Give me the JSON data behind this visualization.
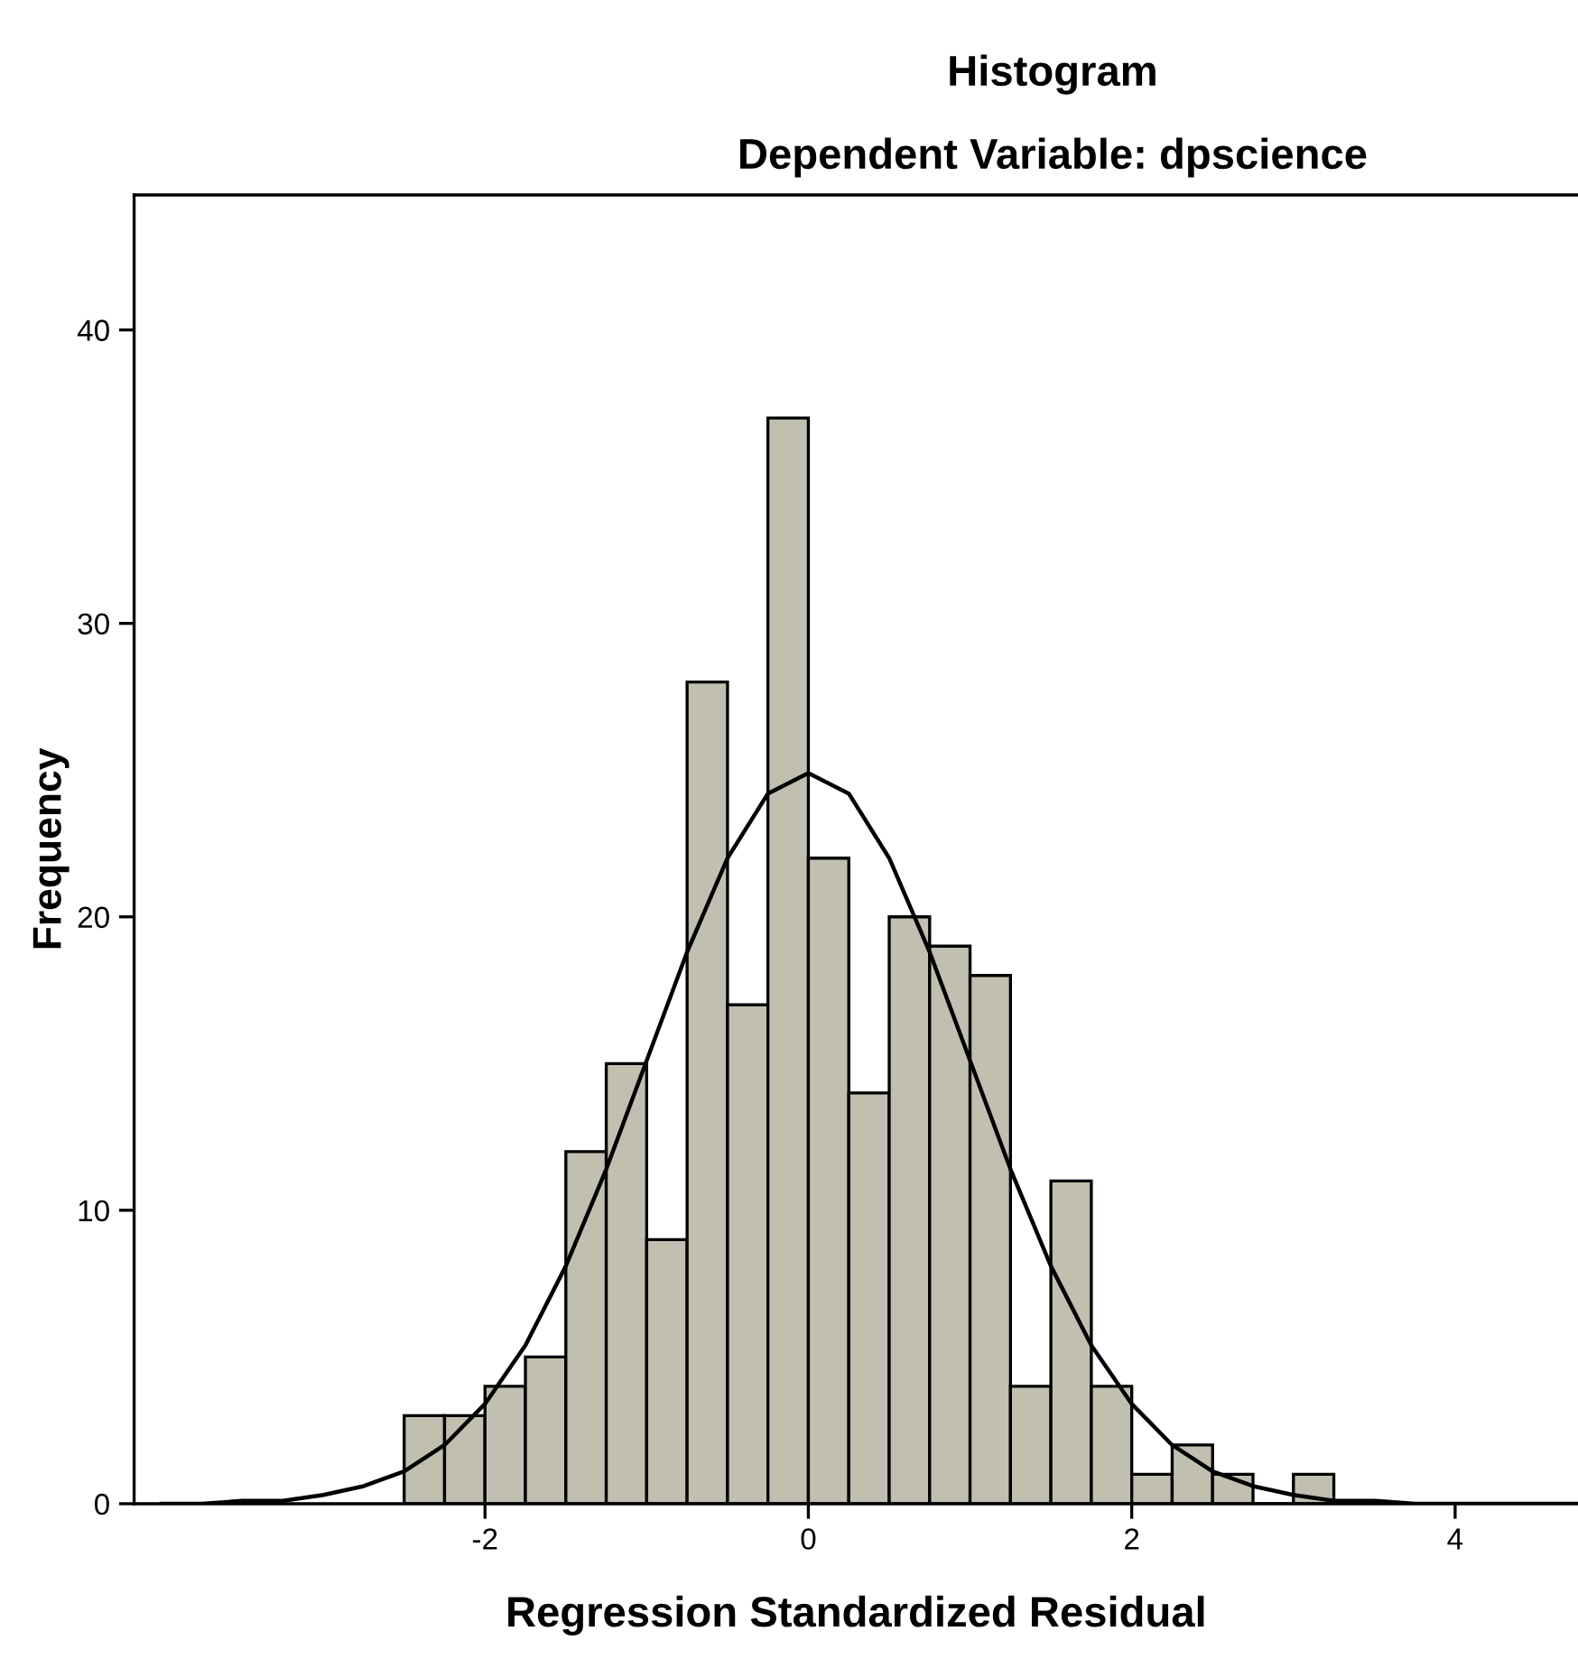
{
  "chart_data": {
    "type": "histogram",
    "title": "Histogram",
    "subtitle": "Dependent Variable: dpscience",
    "xlabel": "Regression Standardized Residual",
    "ylabel": "Frequency",
    "bins": [
      -2.5,
      -2.25,
      -2.0,
      -1.75,
      -1.5,
      -1.25,
      -1.0,
      -0.75,
      -0.5,
      -0.25,
      0.0,
      0.25,
      0.5,
      0.75,
      1.0,
      1.25,
      1.5,
      1.75,
      2.0,
      2.25,
      2.5,
      2.75,
      3.0,
      3.25
    ],
    "values": [
      3,
      3,
      4,
      5,
      12,
      15,
      9,
      28,
      17,
      37,
      22,
      14,
      20,
      19,
      18,
      4,
      11,
      4,
      1,
      2,
      1,
      0,
      1
    ],
    "color": "#c1bfaf",
    "series": [
      {
        "type": "line",
        "color": "#000000",
        "x": [
          -4.0,
          -3.75,
          -3.5,
          -3.25,
          -3.0,
          -2.75,
          -2.5,
          -2.25,
          -2.0,
          -1.75,
          -1.5,
          -1.25,
          -1.0,
          -0.75,
          -0.5,
          -0.25,
          0.0,
          0.25,
          0.5,
          0.75,
          1.0,
          1.25,
          1.5,
          1.75,
          2.0,
          2.25,
          2.5,
          2.75,
          3.0,
          3.25,
          3.5,
          3.75,
          4.0,
          4.25,
          4.5,
          4.75
        ],
        "values": [
          0.0,
          0.0,
          0.1,
          0.1,
          0.3,
          0.6,
          1.1,
          2.0,
          3.4,
          5.4,
          8.1,
          11.4,
          15.1,
          18.8,
          22.0,
          24.2,
          24.9,
          24.2,
          22.0,
          18.8,
          15.1,
          11.4,
          8.1,
          5.4,
          3.4,
          2.0,
          1.1,
          0.6,
          0.3,
          0.1,
          0.1,
          0.0,
          0.0,
          0.0,
          0.0,
          0.0
        ]
      }
    ],
    "xlim": [
      -4.17,
      4.76
    ],
    "ylim": [
      0,
      44.6
    ],
    "xticks": [
      -2,
      0,
      2,
      4
    ],
    "yticks": [
      0,
      10,
      20,
      30,
      40
    ],
    "grid": false,
    "legend": false
  }
}
